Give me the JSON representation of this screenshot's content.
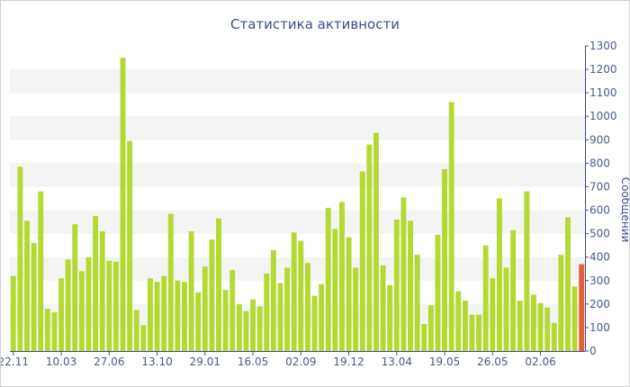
{
  "chart_data": {
    "type": "bar",
    "title": "Статистика активности",
    "ylabel": "Сообщений",
    "xlabel": "",
    "ylim": [
      0,
      1300
    ],
    "y_ticks": [
      0,
      100,
      200,
      300,
      400,
      500,
      600,
      700,
      800,
      900,
      1000,
      1100,
      1200,
      1300
    ],
    "grid": "alternating horizontal bands",
    "x_tick_labels": [
      {
        "label": "22.11",
        "index": 0
      },
      {
        "label": "10.03",
        "index": 7
      },
      {
        "label": "27.06",
        "index": 14
      },
      {
        "label": "13.10",
        "index": 21
      },
      {
        "label": "29.01",
        "index": 28
      },
      {
        "label": "16.05",
        "index": 35
      },
      {
        "label": "02.09",
        "index": 42
      },
      {
        "label": "19.12",
        "index": 49
      },
      {
        "label": "13.04",
        "index": 56
      },
      {
        "label": "19.05",
        "index": 63
      },
      {
        "label": "26.05",
        "index": 70
      },
      {
        "label": "02.06",
        "index": 77
      }
    ],
    "values": [
      320,
      785,
      555,
      460,
      680,
      180,
      165,
      310,
      390,
      540,
      340,
      400,
      575,
      510,
      385,
      380,
      1250,
      895,
      175,
      110,
      310,
      295,
      320,
      585,
      300,
      295,
      510,
      250,
      360,
      475,
      565,
      260,
      345,
      200,
      170,
      220,
      190,
      330,
      430,
      290,
      355,
      505,
      470,
      375,
      235,
      285,
      610,
      520,
      635,
      485,
      355,
      765,
      880,
      930,
      365,
      280,
      560,
      655,
      555,
      410,
      115,
      195,
      495,
      775,
      1060,
      255,
      215,
      155,
      155,
      450,
      310,
      650,
      355,
      515,
      215,
      680,
      240,
      205,
      185,
      120,
      410,
      570,
      275,
      370
    ],
    "highlight_index": 83,
    "colors": {
      "bar": "#b5d933",
      "highlight_bar": "#e85f37",
      "band": "#f4f4f4",
      "axis": "#3d4f8a",
      "tick_text": "#4a5a8c"
    }
  }
}
